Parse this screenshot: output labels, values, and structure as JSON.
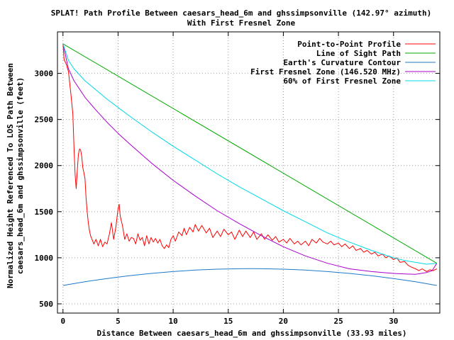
{
  "chart_data": {
    "type": "line",
    "title_line1": "SPLAT! Path Profile Between caesars_head_6m and ghssimpsonville (142.97° azimuth)",
    "title_line2": "With First Fresnel Zone",
    "xlabel": "Distance Between caesars_head_6m and ghssimpsonville (33.93 miles)",
    "ylabel_line1": "Normalized Height Referenced To LOS Path Between",
    "ylabel_line2": "caesars_head_6m and ghssimpsonville (feet)",
    "xlim": [
      -0.5,
      34.2
    ],
    "ylim": [
      400,
      3450
    ],
    "x_ticks": [
      0,
      5,
      10,
      15,
      20,
      25,
      30
    ],
    "y_ticks": [
      500,
      1000,
      1500,
      2000,
      2500,
      3000
    ],
    "grid": true,
    "legend_position": "top-right",
    "series": [
      {
        "name": "Point-to-Point Profile",
        "color": "#ff0000",
        "points": [
          [
            0,
            3320
          ],
          [
            0.1,
            3150
          ],
          [
            0.3,
            3100
          ],
          [
            0.5,
            3020
          ],
          [
            0.7,
            2800
          ],
          [
            0.9,
            2560
          ],
          [
            1.0,
            2200
          ],
          [
            1.1,
            1900
          ],
          [
            1.2,
            1750
          ],
          [
            1.3,
            1950
          ],
          [
            1.4,
            2120
          ],
          [
            1.5,
            2180
          ],
          [
            1.6,
            2170
          ],
          [
            1.7,
            2100
          ],
          [
            1.8,
            1980
          ],
          [
            1.9,
            1920
          ],
          [
            2.0,
            1860
          ],
          [
            2.1,
            1640
          ],
          [
            2.2,
            1500
          ],
          [
            2.3,
            1380
          ],
          [
            2.4,
            1300
          ],
          [
            2.5,
            1240
          ],
          [
            2.6,
            1210
          ],
          [
            2.8,
            1150
          ],
          [
            3.0,
            1200
          ],
          [
            3.2,
            1130
          ],
          [
            3.4,
            1200
          ],
          [
            3.6,
            1120
          ],
          [
            3.8,
            1170
          ],
          [
            4.0,
            1150
          ],
          [
            4.2,
            1250
          ],
          [
            4.4,
            1380
          ],
          [
            4.6,
            1200
          ],
          [
            4.8,
            1330
          ],
          [
            5.0,
            1530
          ],
          [
            5.1,
            1580
          ],
          [
            5.2,
            1450
          ],
          [
            5.4,
            1350
          ],
          [
            5.6,
            1200
          ],
          [
            5.8,
            1260
          ],
          [
            6.0,
            1180
          ],
          [
            6.2,
            1220
          ],
          [
            6.4,
            1210
          ],
          [
            6.6,
            1150
          ],
          [
            6.8,
            1260
          ],
          [
            7.0,
            1190
          ],
          [
            7.2,
            1220
          ],
          [
            7.4,
            1130
          ],
          [
            7.6,
            1240
          ],
          [
            7.8,
            1150
          ],
          [
            8.0,
            1220
          ],
          [
            8.2,
            1170
          ],
          [
            8.4,
            1210
          ],
          [
            8.6,
            1160
          ],
          [
            8.8,
            1200
          ],
          [
            9.0,
            1130
          ],
          [
            9.2,
            1100
          ],
          [
            9.4,
            1140
          ],
          [
            9.6,
            1110
          ],
          [
            9.8,
            1200
          ],
          [
            10.0,
            1240
          ],
          [
            10.2,
            1180
          ],
          [
            10.5,
            1280
          ],
          [
            10.8,
            1240
          ],
          [
            11.0,
            1320
          ],
          [
            11.2,
            1250
          ],
          [
            11.5,
            1330
          ],
          [
            11.8,
            1280
          ],
          [
            12.0,
            1360
          ],
          [
            12.3,
            1290
          ],
          [
            12.6,
            1350
          ],
          [
            13.0,
            1270
          ],
          [
            13.3,
            1320
          ],
          [
            13.6,
            1220
          ],
          [
            14.0,
            1290
          ],
          [
            14.3,
            1230
          ],
          [
            14.6,
            1310
          ],
          [
            15.0,
            1250
          ],
          [
            15.3,
            1280
          ],
          [
            15.6,
            1200
          ],
          [
            16.0,
            1300
          ],
          [
            16.3,
            1230
          ],
          [
            16.6,
            1290
          ],
          [
            17.0,
            1220
          ],
          [
            17.3,
            1280
          ],
          [
            17.6,
            1200
          ],
          [
            18.0,
            1260
          ],
          [
            18.3,
            1200
          ],
          [
            18.6,
            1250
          ],
          [
            19.0,
            1190
          ],
          [
            19.3,
            1230
          ],
          [
            19.6,
            1170
          ],
          [
            20.0,
            1200
          ],
          [
            20.3,
            1160
          ],
          [
            20.6,
            1210
          ],
          [
            21.0,
            1150
          ],
          [
            21.3,
            1180
          ],
          [
            21.6,
            1140
          ],
          [
            22.0,
            1180
          ],
          [
            22.3,
            1130
          ],
          [
            22.6,
            1200
          ],
          [
            23.0,
            1160
          ],
          [
            23.3,
            1210
          ],
          [
            23.6,
            1170
          ],
          [
            24.0,
            1150
          ],
          [
            24.3,
            1180
          ],
          [
            24.6,
            1140
          ],
          [
            25.0,
            1160
          ],
          [
            25.3,
            1120
          ],
          [
            25.6,
            1150
          ],
          [
            26.0,
            1100
          ],
          [
            26.3,
            1130
          ],
          [
            26.6,
            1080
          ],
          [
            27.0,
            1100
          ],
          [
            27.3,
            1060
          ],
          [
            27.6,
            1080
          ],
          [
            28.0,
            1040
          ],
          [
            28.3,
            1060
          ],
          [
            28.6,
            1020
          ],
          [
            29.0,
            1040
          ],
          [
            29.3,
            1000
          ],
          [
            29.6,
            1020
          ],
          [
            30.0,
            980
          ],
          [
            30.3,
            1000
          ],
          [
            30.6,
            950
          ],
          [
            31.0,
            960
          ],
          [
            31.3,
            920
          ],
          [
            31.6,
            900
          ],
          [
            32.0,
            880
          ],
          [
            32.3,
            860
          ],
          [
            32.6,
            880
          ],
          [
            33.0,
            850
          ],
          [
            33.3,
            870
          ],
          [
            33.6,
            860
          ],
          [
            33.93,
            880
          ]
        ]
      },
      {
        "name": "Line of Sight Path",
        "color": "#00aa00",
        "points": [
          [
            0,
            3320
          ],
          [
            33.93,
            940
          ]
        ]
      },
      {
        "name": "Earth's Curvature Contour",
        "color": "#1e78c8",
        "points": [
          [
            0,
            700
          ],
          [
            2,
            740
          ],
          [
            4,
            775
          ],
          [
            6,
            805
          ],
          [
            8,
            830
          ],
          [
            10,
            850
          ],
          [
            12,
            866
          ],
          [
            14,
            876
          ],
          [
            16,
            881
          ],
          [
            17,
            882
          ],
          [
            18,
            881
          ],
          [
            20,
            876
          ],
          [
            22,
            866
          ],
          [
            24,
            850
          ],
          [
            26,
            830
          ],
          [
            28,
            805
          ],
          [
            30,
            775
          ],
          [
            32,
            740
          ],
          [
            33.93,
            700
          ]
        ]
      },
      {
        "name": "First Fresnel Zone (146.520 MHz)",
        "color": "#aa00cc",
        "points": [
          [
            0,
            3320
          ],
          [
            0.5,
            3050
          ],
          [
            1,
            2920
          ],
          [
            2,
            2740
          ],
          [
            3,
            2600
          ],
          [
            4,
            2470
          ],
          [
            5,
            2350
          ],
          [
            6,
            2240
          ],
          [
            8,
            2030
          ],
          [
            10,
            1840
          ],
          [
            12,
            1670
          ],
          [
            14,
            1510
          ],
          [
            16,
            1370
          ],
          [
            18,
            1240
          ],
          [
            20,
            1120
          ],
          [
            22,
            1020
          ],
          [
            24,
            940
          ],
          [
            26,
            880
          ],
          [
            28,
            850
          ],
          [
            30,
            830
          ],
          [
            31,
            825
          ],
          [
            32,
            820
          ],
          [
            33,
            840
          ],
          [
            33.5,
            860
          ],
          [
            33.93,
            940
          ]
        ]
      },
      {
        "name": "60% of First Fresnel Zone",
        "color": "#00d8e8",
        "points": [
          [
            0,
            3320
          ],
          [
            0.5,
            3140
          ],
          [
            1,
            3050
          ],
          [
            2,
            2920
          ],
          [
            3,
            2820
          ],
          [
            4,
            2720
          ],
          [
            5,
            2630
          ],
          [
            6,
            2540
          ],
          [
            8,
            2370
          ],
          [
            10,
            2210
          ],
          [
            12,
            2060
          ],
          [
            14,
            1910
          ],
          [
            16,
            1770
          ],
          [
            18,
            1640
          ],
          [
            20,
            1510
          ],
          [
            22,
            1390
          ],
          [
            24,
            1270
          ],
          [
            26,
            1170
          ],
          [
            28,
            1080
          ],
          [
            30,
            1000
          ],
          [
            31,
            970
          ],
          [
            32,
            950
          ],
          [
            33,
            930
          ],
          [
            33.93,
            940
          ]
        ]
      }
    ]
  }
}
